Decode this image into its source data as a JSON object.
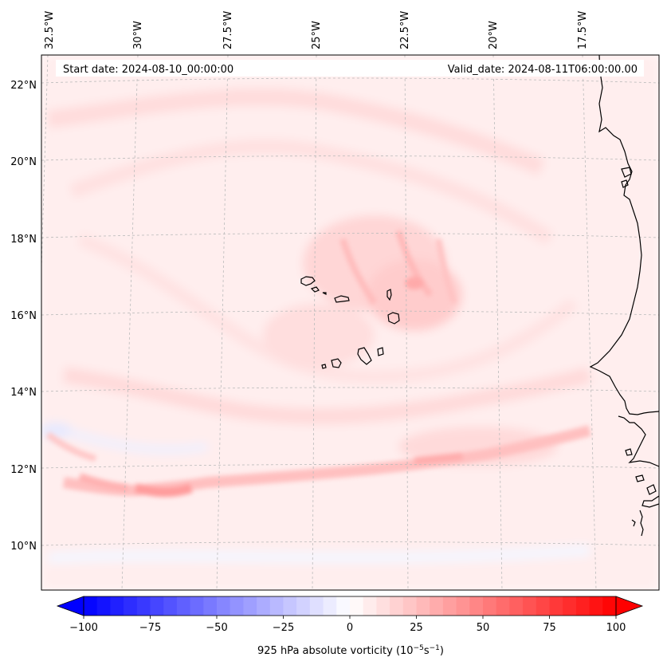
{
  "map": {
    "start_label": "Start date: 2024-08-10_00:00:00",
    "valid_label": "Valid_date: 2024-08-11T06:00:00.00",
    "lon_labels": [
      "32.5°W",
      "30°W",
      "27.5°W",
      "25°W",
      "22.5°W",
      "20°W",
      "17.5°W"
    ],
    "lat_labels": [
      "22°N",
      "20°N",
      "18°N",
      "16°N",
      "14°N",
      "12°N",
      "10°N"
    ],
    "field": "925 hPa absolute vorticity",
    "colors": {
      "positive_max": "#ff0000",
      "negative_max": "#0000ff",
      "coastline": "#000000",
      "gridline": "#bbbbbb"
    }
  },
  "colorbar": {
    "label_main": "925 hPa absolute vorticity (10",
    "label_exp1": "−5",
    "label_mid": "s",
    "label_exp2": "−1",
    "label_end": ")",
    "tick_values": [
      -100,
      -75,
      -50,
      -25,
      0,
      25,
      50,
      75,
      100
    ],
    "tick_labels": [
      "−100",
      "−75",
      "−50",
      "−25",
      "0",
      "25",
      "50",
      "75",
      "100"
    ],
    "vmin": -100,
    "vmax": 100,
    "levels": 40,
    "extend": "both"
  }
}
